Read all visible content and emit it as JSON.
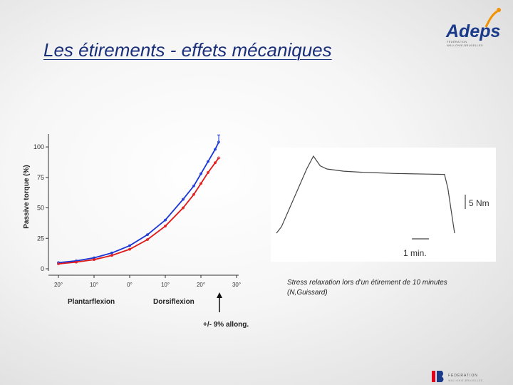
{
  "slide": {
    "title": "Les étirements - effets mécaniques",
    "caption_line1": "Stress relaxation lors d'un étirement de 10 minutes",
    "caption_line2": "(N,Guissard)"
  },
  "logo": {
    "text": "Adeps",
    "sub_line1": "FÉDÉRATION",
    "sub_line2": "WALLONIE-BRUXELLES",
    "color": "#1a3a8a",
    "accent": "#f39200"
  },
  "footer": {
    "line1": "FÉDÉRATION",
    "line2": "WALLONIE-BRUXELLES"
  },
  "chart_data": [
    {
      "type": "line",
      "ylabel": "Passive torque (%)",
      "yticks": [
        "0",
        "25",
        "50",
        "75",
        "100"
      ],
      "xticks": [
        "20°",
        "10°",
        "0°",
        "10°",
        "20°",
        "30°"
      ],
      "xgroup_left": "Plantarflexion",
      "xgroup_right": "Dorsiflexion",
      "annotation": "+/- 9% allong.",
      "xlim": [
        -20,
        30
      ],
      "ylim": [
        0,
        110
      ],
      "series": [
        {
          "color": "#1a35d6",
          "x": [
            -20,
            -15,
            -10,
            -5,
            0,
            5,
            10,
            15,
            18,
            20,
            22,
            24,
            25
          ],
          "y": [
            5,
            6.5,
            9,
            13,
            19,
            28,
            40,
            57,
            68,
            78,
            88,
            98,
            104
          ]
        },
        {
          "color": "#e01818",
          "x": [
            -20,
            -15,
            -10,
            -5,
            0,
            5,
            10,
            15,
            18,
            20,
            22,
            24,
            25
          ],
          "y": [
            4,
            5.5,
            7.5,
            11,
            16,
            24,
            35,
            50,
            61,
            70,
            79,
            87,
            91
          ]
        }
      ]
    },
    {
      "type": "line",
      "scale_label": "5 Nm",
      "time_label": "1 min.",
      "x": [
        0,
        0.3,
        0.8,
        1.3,
        1.8,
        2.2,
        2.6,
        3,
        4,
        5,
        6,
        7,
        8,
        9,
        10,
        10.2,
        10.6
      ],
      "y": [
        0,
        2,
        8,
        14,
        20,
        24,
        21,
        20,
        19.3,
        19.0,
        18.8,
        18.6,
        18.5,
        18.4,
        18.3,
        14,
        0
      ]
    }
  ]
}
